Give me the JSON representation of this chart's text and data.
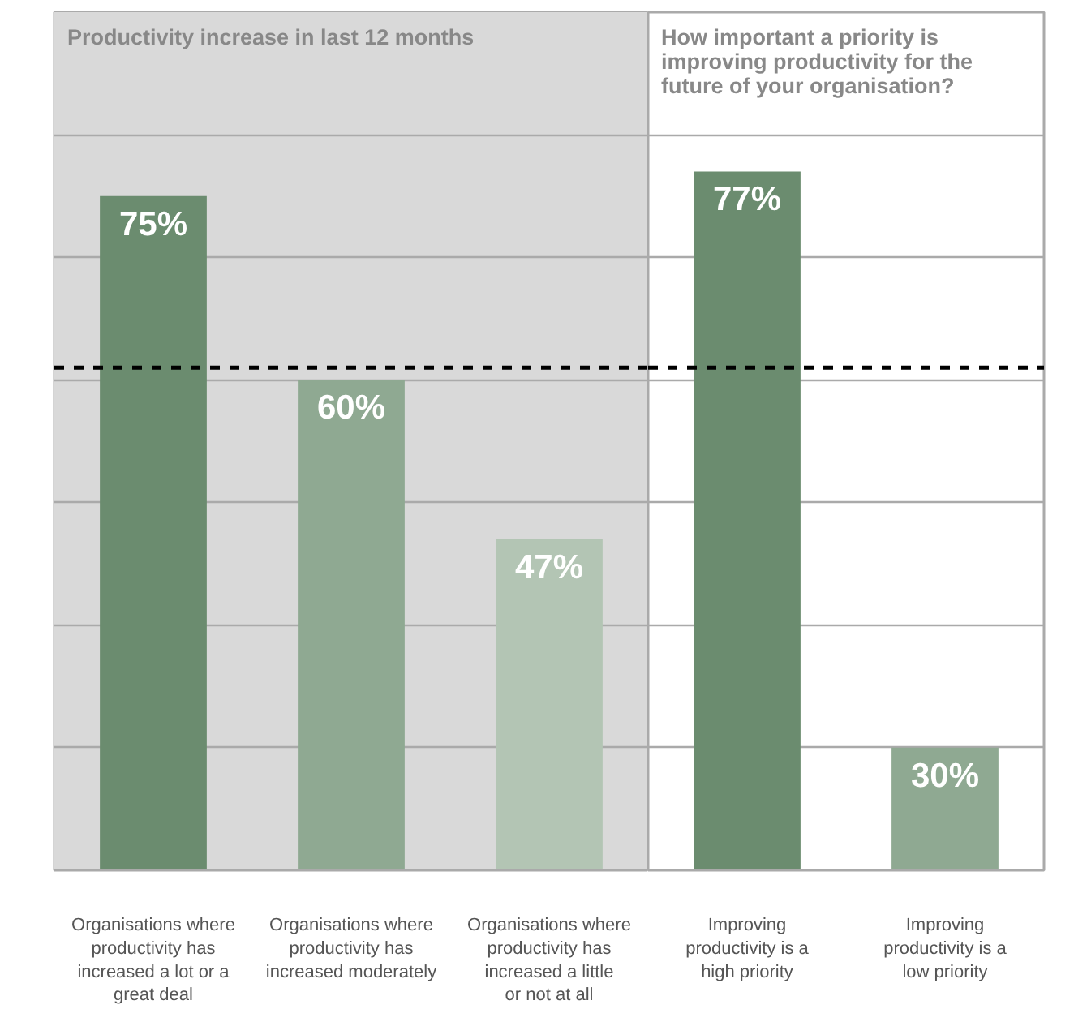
{
  "chart_data": [
    {
      "type": "bar",
      "title": "Productivity increase in last 12 months",
      "categories": [
        "Organisations where productivity has increased a lot or a great deal",
        "Organisations where productivity has increased moderately",
        "Organisations where productivity has increased a little or not at all"
      ],
      "values": [
        75,
        60,
        47
      ],
      "colors": [
        "#6b8c6f",
        "#8fa992",
        "#b3c5b4"
      ],
      "value_labels": [
        "75%",
        "60%",
        "47%"
      ],
      "ylim": [
        20,
        90
      ],
      "yticks": [
        {
          "value": 30,
          "label": null
        },
        {
          "value": 40,
          "label": null
        },
        {
          "value": 50,
          "label": null
        },
        {
          "value": 60,
          "label": null
        },
        {
          "value": 70,
          "label": null
        },
        {
          "value": 80,
          "label": null
        }
      ],
      "grid": "y",
      "tick_labels": "x",
      "bands": [
        {
          "axis": "y",
          "from": 20,
          "to": 90,
          "color": "#d9d9d9"
        }
      ],
      "ref_lines": [
        {
          "axis": "y",
          "value": 61,
          "color": "#000000",
          "line_style": "dashed"
        }
      ]
    },
    {
      "type": "bar",
      "title": "How important a priority is improving productivity for the future of your organisation?",
      "categories": [
        "Improving productivity is a high priority",
        "Improving productivity is a low priority"
      ],
      "values": [
        77,
        30
      ],
      "colors": [
        "#6b8c6f",
        "#8fa992"
      ],
      "value_labels": [
        "77%",
        "30%"
      ],
      "ylim": [
        20,
        90
      ],
      "yticks": [
        {
          "value": 30,
          "label": null
        },
        {
          "value": 40,
          "label": null
        },
        {
          "value": 50,
          "label": null
        },
        {
          "value": 60,
          "label": null
        },
        {
          "value": 70,
          "label": null
        },
        {
          "value": 80,
          "label": null
        }
      ],
      "grid": "y",
      "tick_labels": "x",
      "ref_lines": [
        {
          "axis": "y",
          "value": 61,
          "color": "#000000",
          "line_style": "dashed"
        }
      ]
    }
  ]
}
